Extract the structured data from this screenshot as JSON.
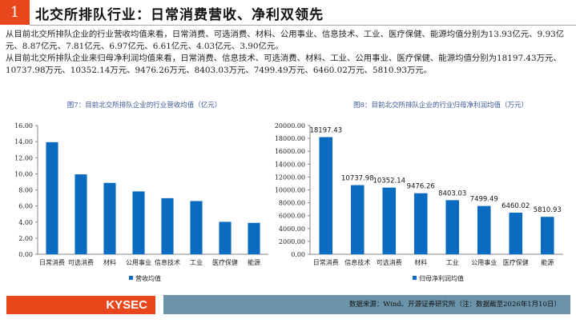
{
  "header": {
    "number": "1",
    "title": "北交所排队行业：日常消费营收、净利双领先"
  },
  "paragraphs": [
    "从目前北交所排队企业的行业营收均值来看，日常消费、可选消费、材料、公用事业、信息技术、工业、医疗保健、能源均值分别为13.93亿元、9.93亿元、8.87亿元、7.81亿元、6.97亿元、6.61亿元、4.03亿元、3.90亿元。",
    "从目前北交所排队企业来归母净利润均值来看，日常消费、信息技术、可选消费、材料、工业、公用事业、医疗保健、能源均值分别为18197.43万元、10737.98万元、10352.14万元、9476.26万元、8403.03万元、7499.49万元、6460.02万元、5810.93万元。"
  ],
  "footer": {
    "logo": "KYSEC",
    "source": "数据来源：Wind、开源证券研究所（注：数据截至2026年1月10日）"
  },
  "colors": {
    "bar": "#0b6bc0",
    "accent": "#e8461b",
    "footer": "#6b93a9",
    "title": "#3a5a9a"
  },
  "chart_data": [
    {
      "type": "bar",
      "title": "图7：目前北交所排队企业的行业营收均值（亿元）",
      "categories": [
        "日常消费",
        "可选消费",
        "材料",
        "公用事业",
        "信息技术",
        "工业",
        "医疗保健",
        "能源"
      ],
      "values": [
        13.93,
        9.93,
        8.87,
        7.81,
        6.97,
        6.61,
        4.03,
        3.9
      ],
      "ylim": [
        0,
        16
      ],
      "yticks": [
        "0.00",
        "2.00",
        "4.00",
        "6.00",
        "8.00",
        "10.00",
        "12.00",
        "14.00",
        "16.00"
      ],
      "legend": "营收均值",
      "data_labels": false
    },
    {
      "type": "bar",
      "title": "图8：目前北交所排队企业的行业归母净利润均值（万元）",
      "categories": [
        "日常消费",
        "信息技术",
        "可选消费",
        "材料",
        "工业",
        "公用事业",
        "医疗保健",
        "能源"
      ],
      "values": [
        18197.43,
        10737.98,
        10352.14,
        9476.26,
        8403.03,
        7499.49,
        6460.02,
        5810.93
      ],
      "ylim": [
        0,
        20000
      ],
      "yticks": [
        "0.00",
        "2000.00",
        "4000.00",
        "6000.00",
        "8000.00",
        "10000.00",
        "12000.00",
        "14000.00",
        "16000.00",
        "18000.00",
        "20000.00"
      ],
      "legend": "归母净利润均值",
      "data_labels": true
    }
  ]
}
